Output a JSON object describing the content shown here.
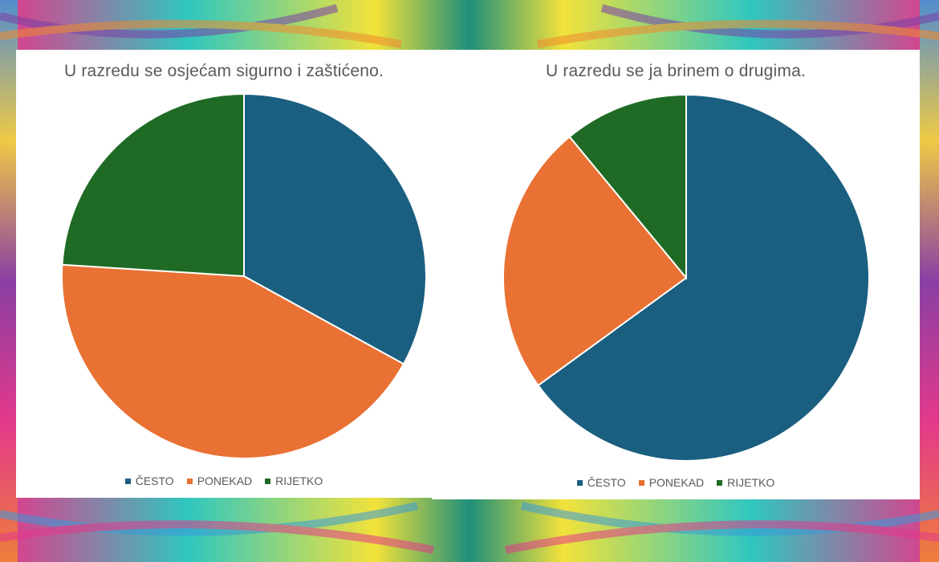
{
  "background": {
    "colors": [
      "#e4388a",
      "#2fc7c0",
      "#f2e23a",
      "#7b3fa8",
      "#f08a2e",
      "#3a9ad9"
    ]
  },
  "chart_data": [
    {
      "type": "pie",
      "title": "U razredu se osjećam sigurno i zaštićeno.",
      "categories": [
        "ČESTO",
        "PONEKAD",
        "RIJETKO"
      ],
      "values": [
        33,
        43,
        24
      ],
      "colors": [
        "#1a5e80",
        "#e87133",
        "#1f6b25"
      ],
      "start_angle_deg": 0,
      "legend": "bottom"
    },
    {
      "type": "pie",
      "title": "U razredu se ja brinem o drugima.",
      "categories": [
        "ČESTO",
        "PONEKAD",
        "RIJETKO"
      ],
      "values": [
        65,
        24,
        11
      ],
      "colors": [
        "#1a5e80",
        "#e87133",
        "#1f6b25"
      ],
      "start_angle_deg": 0,
      "legend": "bottom"
    }
  ]
}
